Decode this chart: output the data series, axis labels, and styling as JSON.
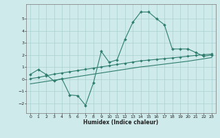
{
  "xlabel": "Humidex (Indice chaleur)",
  "background_color": "#ceeaea",
  "grid_color": "#aacfcf",
  "line_color": "#2e7d6e",
  "xlim": [
    -0.5,
    23.5
  ],
  "ylim": [
    -2.8,
    6.2
  ],
  "x_ticks": [
    0,
    1,
    2,
    3,
    4,
    5,
    6,
    7,
    8,
    9,
    10,
    11,
    12,
    13,
    14,
    15,
    16,
    17,
    18,
    19,
    20,
    21,
    22,
    23
  ],
  "y_ticks": [
    -2,
    -1,
    0,
    1,
    2,
    3,
    4,
    5
  ],
  "curve1_x": [
    0,
    1,
    2,
    3,
    4,
    5,
    6,
    7,
    8,
    9,
    10,
    11,
    12,
    13,
    14,
    15,
    16,
    17,
    18,
    19,
    20,
    21,
    22,
    23
  ],
  "curve1_y": [
    0.4,
    0.8,
    0.4,
    -0.15,
    0.05,
    -1.3,
    -1.35,
    -2.15,
    -0.3,
    2.3,
    1.4,
    1.6,
    3.3,
    4.7,
    5.55,
    5.55,
    5.0,
    4.5,
    2.5,
    2.5,
    2.5,
    2.2,
    1.9,
    2.0
  ],
  "curve2_x": [
    0,
    1,
    2,
    3,
    4,
    5,
    6,
    7,
    8,
    9,
    10,
    11,
    12,
    13,
    14,
    15,
    16,
    17,
    18,
    19,
    20,
    21,
    22,
    23
  ],
  "curve2_y": [
    0.05,
    0.15,
    0.28,
    0.42,
    0.52,
    0.62,
    0.72,
    0.82,
    0.92,
    1.02,
    1.12,
    1.22,
    1.32,
    1.42,
    1.52,
    1.58,
    1.64,
    1.7,
    1.76,
    1.83,
    1.9,
    1.97,
    2.03,
    2.08
  ],
  "curve3_x": [
    0,
    1,
    2,
    3,
    4,
    5,
    6,
    7,
    8,
    9,
    10,
    11,
    12,
    13,
    14,
    15,
    16,
    17,
    18,
    19,
    20,
    21,
    22,
    23
  ],
  "curve3_y": [
    -0.38,
    -0.28,
    -0.18,
    -0.08,
    0.02,
    0.12,
    0.22,
    0.32,
    0.42,
    0.52,
    0.62,
    0.72,
    0.82,
    0.92,
    1.02,
    1.09,
    1.17,
    1.25,
    1.33,
    1.41,
    1.49,
    1.59,
    1.69,
    1.79
  ]
}
